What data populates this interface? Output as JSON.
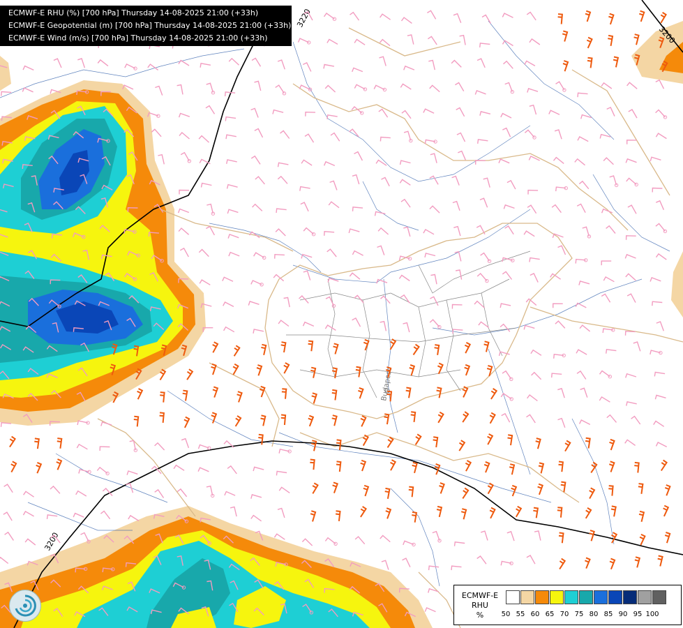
{
  "header": {
    "lines": [
      "ECMWF-E RHU (%) [700 hPa] Thursday 14-08-2025 21:00 (+33h)",
      "ECMWF-E Geopotential (m) [700 hPa] Thursday 14-08-2025 21:00 (+33h)",
      "ECMWF-E Wind (m/s) [700 hPa] Thursday 14-08-2025 21:00 (+33h)"
    ]
  },
  "map": {
    "contour_labels": [
      "3220",
      "3200",
      "3200"
    ],
    "city_label": "Budapest",
    "geopotential_line_color": "#000000",
    "wind_barb_colors": {
      "light": "#f29cc0",
      "strong": "#ee5a0e"
    }
  },
  "legend": {
    "line1": "ECMWF-E",
    "line2": "RHU",
    "line3": "%",
    "ticks": [
      "50",
      "55",
      "60",
      "65",
      "70",
      "75",
      "80",
      "85",
      "90",
      "95",
      "100"
    ],
    "colors": [
      "#ffffff",
      "#f4d6a4",
      "#f58a0a",
      "#f6f50e",
      "#1ecfd4",
      "#18a8ab",
      "#1a6fdc",
      "#0a46b7",
      "#062c78",
      "#a0a0a0",
      "#606060"
    ]
  },
  "logo": {
    "icon": "ecmwf-swirl-logo-icon"
  }
}
